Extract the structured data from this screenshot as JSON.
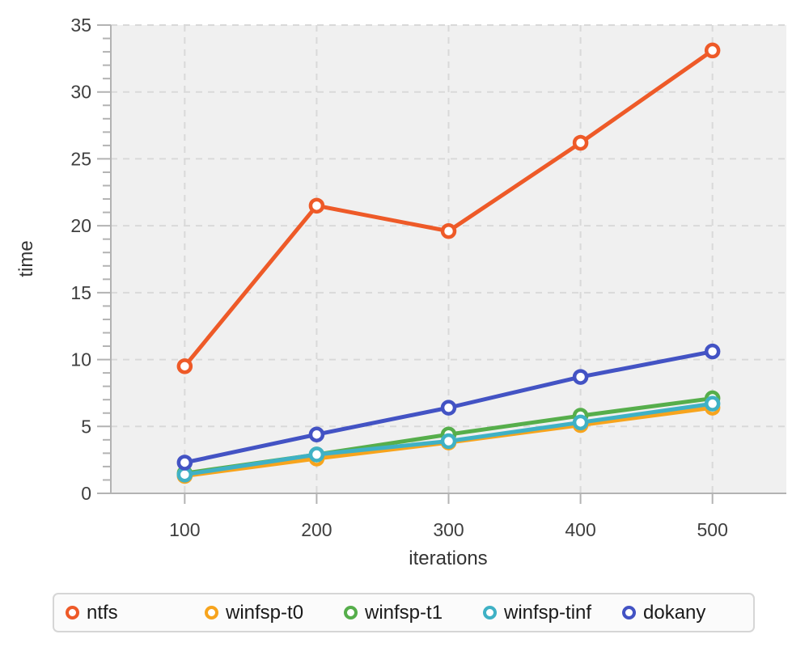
{
  "chart_data": {
    "type": "line",
    "title": "",
    "xlabel": "iterations",
    "ylabel": "time",
    "x": [
      100,
      200,
      300,
      400,
      500
    ],
    "x_ticks": [
      100,
      200,
      300,
      400,
      500
    ],
    "y_ticks": [
      0,
      5,
      10,
      15,
      20,
      25,
      30,
      35
    ],
    "xlim": [
      44,
      556
    ],
    "ylim": [
      0,
      35
    ],
    "y_minor_step": 1,
    "grid": true,
    "grid_style": "dashed",
    "legend_position": "bottom",
    "marker": "open-circle",
    "series": [
      {
        "name": "winfsp-t0",
        "color": "#f7a41d",
        "values": [
          1.3,
          2.6,
          3.8,
          5.1,
          6.4
        ]
      },
      {
        "name": "winfsp-t1",
        "color": "#56ae4b",
        "values": [
          1.5,
          2.9,
          4.4,
          5.8,
          7.1
        ]
      },
      {
        "name": "winfsp-tinf",
        "color": "#3fb1c5",
        "values": [
          1.4,
          2.9,
          3.9,
          5.3,
          6.7
        ]
      },
      {
        "name": "dokany",
        "color": "#4353c4",
        "values": [
          2.3,
          4.4,
          6.4,
          8.7,
          10.6
        ]
      },
      {
        "name": "ntfs",
        "color": "#ee5a28",
        "values": [
          9.5,
          21.5,
          19.6,
          26.2,
          33.1
        ]
      }
    ],
    "legend_order": [
      "ntfs",
      "winfsp-t0",
      "winfsp-t1",
      "winfsp-tinf",
      "dokany"
    ]
  },
  "style": {
    "plot_bg": "#f0f0f0",
    "grid_color": "#d9d9d9",
    "axis_color": "#b3b3b3",
    "tick_label_color": "#3f3f3f",
    "axis_title_color": "#333333",
    "legend_bg": "#fbfbfb",
    "legend_border": "#d6d6d6",
    "legend_text": "#1a1a1a"
  }
}
